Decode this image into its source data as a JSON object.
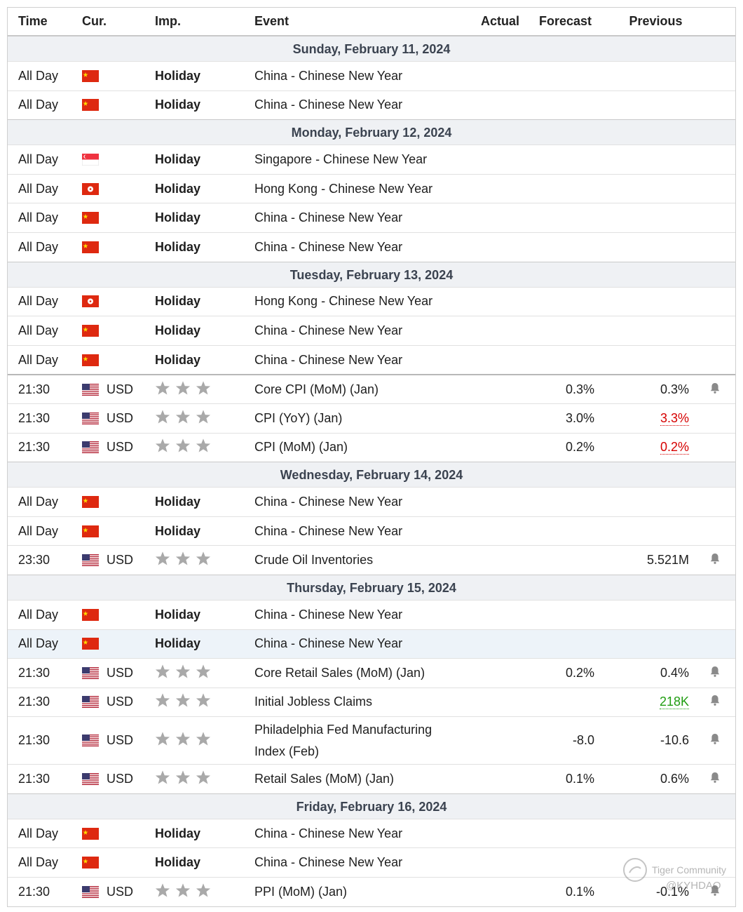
{
  "header": {
    "columns": [
      "Time",
      "Cur.",
      "Imp.",
      "Event",
      "Actual",
      "Forecast",
      "Previous"
    ]
  },
  "sections": [
    {
      "date": "Sunday, February 11, 2024",
      "rows": [
        {
          "time": "All Day",
          "importance": "Holiday",
          "event": "China - Chinese New Year"
        },
        {
          "time": "All Day",
          "importance": "Holiday",
          "event": "China - Chinese New Year"
        }
      ]
    },
    {
      "date": "Monday, February 12, 2024",
      "rows": [
        {
          "time": "All Day",
          "importance": "Holiday",
          "event": "Singapore - Chinese New Year"
        },
        {
          "time": "All Day",
          "importance": "Holiday",
          "event": "Hong Kong - Chinese New Year"
        },
        {
          "time": "All Day",
          "importance": "Holiday",
          "event": "China - Chinese New Year"
        },
        {
          "time": "All Day",
          "importance": "Holiday",
          "event": "China - Chinese New Year"
        }
      ]
    },
    {
      "date": "Tuesday, February 13, 2024",
      "rows": [
        {
          "time": "All Day",
          "importance": "Holiday",
          "event": "Hong Kong - Chinese New Year"
        },
        {
          "time": "All Day",
          "importance": "Holiday",
          "event": "China - Chinese New Year"
        },
        {
          "time": "All Day",
          "importance": "Holiday",
          "event": "China - Chinese New Year"
        },
        {
          "time": "21:30",
          "currency": "USD",
          "event": "Core CPI (MoM) (Jan)",
          "forecast": "0.3%",
          "previous": "0.3%"
        },
        {
          "time": "21:30",
          "currency": "USD",
          "event": "CPI (YoY) (Jan)",
          "forecast": "3.0%",
          "previous": "3.3%"
        },
        {
          "time": "21:30",
          "currency": "USD",
          "event": "CPI (MoM) (Jan)",
          "forecast": "0.2%",
          "previous": "0.2%"
        }
      ]
    },
    {
      "date": "Wednesday, February 14, 2024",
      "rows": [
        {
          "time": "All Day",
          "importance": "Holiday",
          "event": "China - Chinese New Year"
        },
        {
          "time": "All Day",
          "importance": "Holiday",
          "event": "China - Chinese New Year"
        },
        {
          "time": "23:30",
          "currency": "USD",
          "event": "Crude Oil Inventories",
          "previous": "5.521M"
        }
      ]
    },
    {
      "date": "Thursday, February 15, 2024",
      "rows": [
        {
          "time": "All Day",
          "importance": "Holiday",
          "event": "China - Chinese New Year"
        },
        {
          "time": "All Day",
          "importance": "Holiday",
          "event": "China - Chinese New Year"
        },
        {
          "time": "21:30",
          "currency": "USD",
          "event": "Core Retail Sales (MoM) (Jan)",
          "forecast": "0.2%",
          "previous": "0.4%"
        },
        {
          "time": "21:30",
          "currency": "USD",
          "event": "Initial Jobless Claims",
          "previous": "218K"
        },
        {
          "time": "21:30",
          "currency": "USD",
          "event": "Philadelphia Fed Manufacturing Index (Feb)",
          "forecast": "-8.0",
          "previous": "-10.6"
        },
        {
          "time": "21:30",
          "currency": "USD",
          "event": "Retail Sales (MoM) (Jan)",
          "forecast": "0.1%",
          "previous": "0.6%"
        }
      ]
    },
    {
      "date": "Friday, February 16, 2024",
      "rows": [
        {
          "time": "All Day",
          "importance": "Holiday",
          "event": "China - Chinese New Year"
        },
        {
          "time": "All Day",
          "importance": "Holiday",
          "event": "China - Chinese New Year"
        },
        {
          "time": "21:30",
          "currency": "USD",
          "event": "PPI (MoM) (Jan)",
          "forecast": "0.1%",
          "previous": "-0.1%"
        }
      ]
    }
  ],
  "watermark": {
    "brand": "Tiger Community",
    "handle": "@KYHDAO"
  }
}
